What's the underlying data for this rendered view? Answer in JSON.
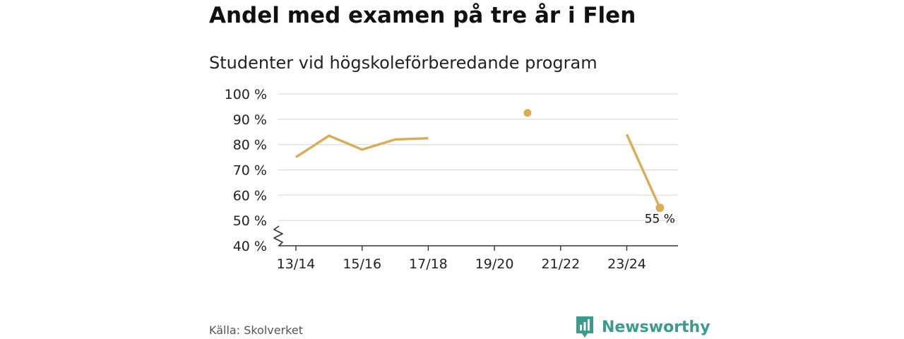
{
  "title": "Andel med examen på tre år i Flen",
  "subtitle": "Studenter vid högskoleförberedande program",
  "source": "Källa: Skolverket",
  "logo_text": "Newsworthy",
  "colors": {
    "line": "#d9ad5b",
    "grid": "#d9d9d9",
    "axis": "#333333",
    "brand": "#3d9a8f"
  },
  "chart_data": {
    "type": "line",
    "x": [
      "13/14",
      "14/15",
      "15/16",
      "16/17",
      "17/18",
      "18/19",
      "19/20",
      "20/21",
      "21/22",
      "22/23",
      "23/24",
      "24/25"
    ],
    "xtick_labels": [
      "13/14",
      "15/16",
      "17/18",
      "19/20",
      "21/22",
      "23/24"
    ],
    "xtick_positions": [
      "13/14",
      "15/16",
      "17/18",
      "19/20",
      "21/22",
      "23/24"
    ],
    "values": [
      75,
      83.5,
      78,
      82,
      82.5,
      null,
      null,
      92.5,
      null,
      null,
      84,
      55
    ],
    "y_ticks": [
      40,
      50,
      60,
      70,
      80,
      90,
      100
    ],
    "y_tick_labels": [
      "40 %",
      "50 %",
      "60 %",
      "70 %",
      "80 %",
      "90 %",
      "100 %"
    ],
    "ylim": [
      40,
      100
    ],
    "axis_break": true,
    "annotations": [
      {
        "x": "24/25",
        "label": "55 %"
      }
    ],
    "grid": true
  }
}
